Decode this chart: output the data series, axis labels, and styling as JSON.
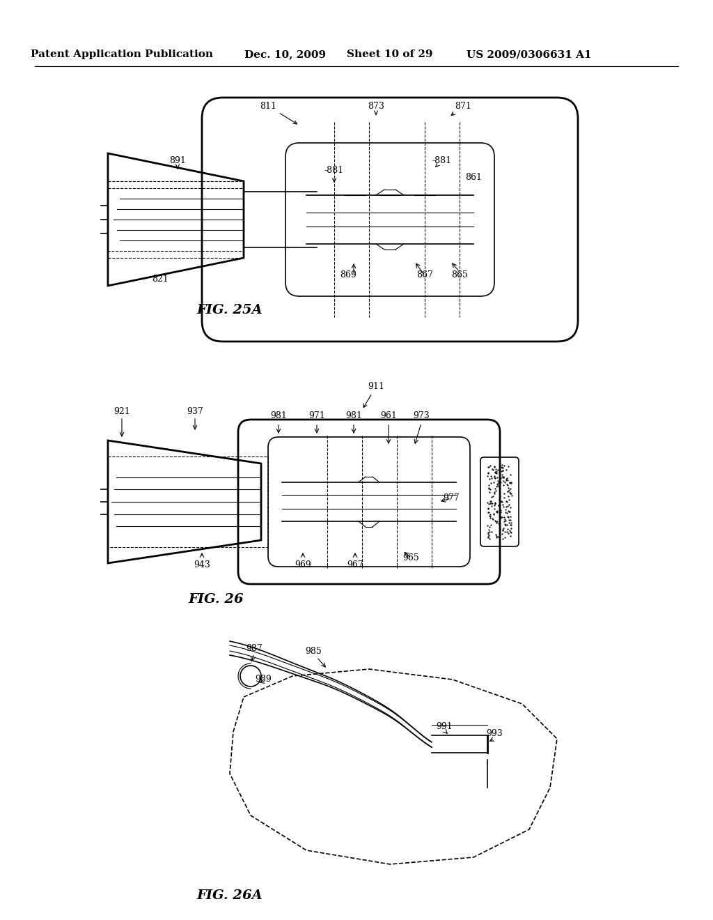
{
  "bg_color": "#ffffff",
  "header_text": "Patent Application Publication",
  "header_date": "Dec. 10, 2009",
  "header_sheet": "Sheet 10 of 29",
  "header_patent": "US 2009/0306631 A1",
  "fig25a_label": "FIG. 25A",
  "fig26_label": "FIG. 26",
  "fig26a_label": "FIG. 26A",
  "text_color": "#000000",
  "line_color": "#000000",
  "header_fontsize": 11,
  "label_fontsize": 10,
  "fig_label_fontsize": 13
}
